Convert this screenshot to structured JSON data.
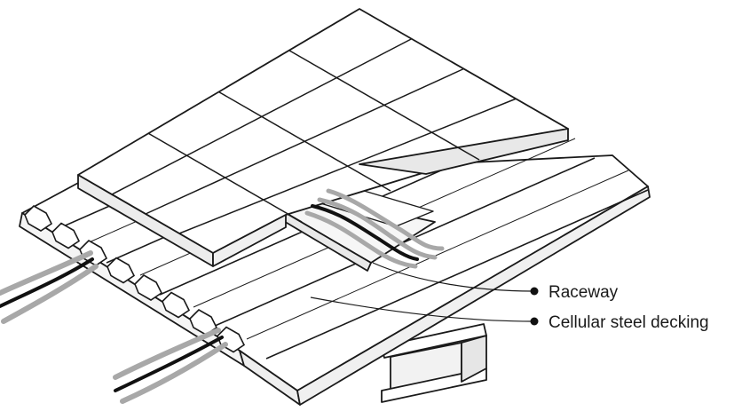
{
  "labels": {
    "raceway": "Raceway",
    "decking": "Cellular steel decking"
  },
  "colors": {
    "line": "#1a1a1a",
    "gray_cable": "#a8a8a8",
    "dark_cable": "#111111",
    "deck_face": "#ffffff",
    "shade": "#ececec"
  }
}
